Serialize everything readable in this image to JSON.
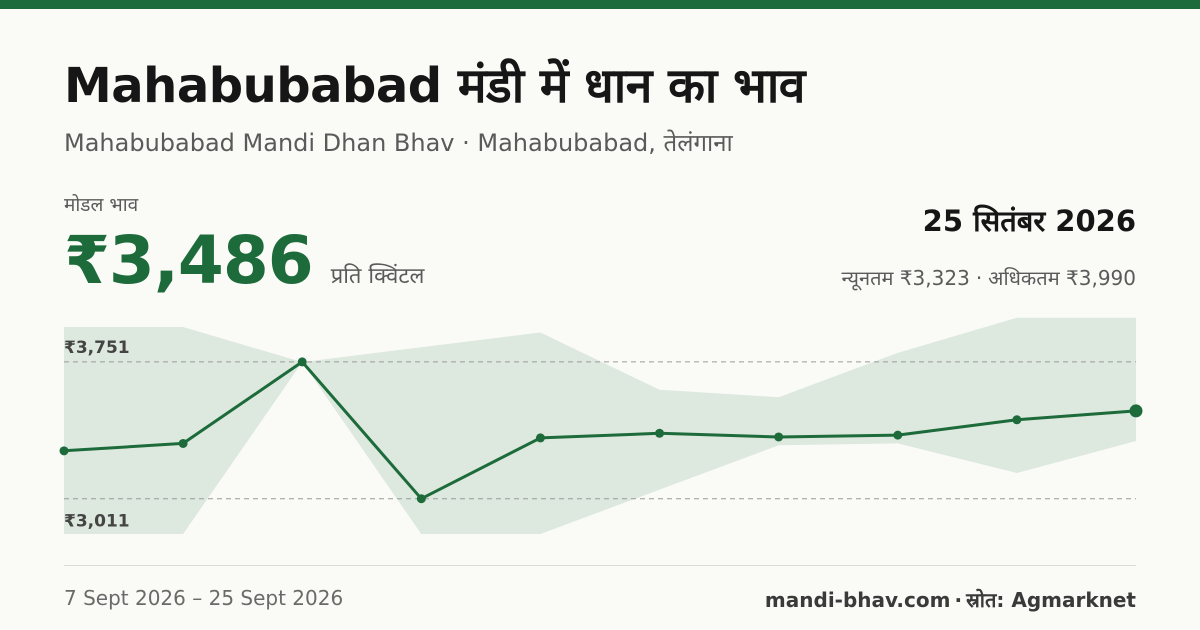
{
  "colors": {
    "accent": "#1d6b3a",
    "band": "#dde8df",
    "grid": "#9a9a9a",
    "muted_text": "#5a5a5a"
  },
  "header": {
    "title": "Mahabubabad मंडी में धान का भाव",
    "subtitle": "Mahabubabad Mandi Dhan Bhav · Mahabubabad, तेलंगाना"
  },
  "price": {
    "label": "मोडल भाव",
    "value": "₹3,486",
    "unit": "प्रति क्विंटल"
  },
  "summary": {
    "date": "25 सितंबर 2026",
    "min_label": "न्यूनतम ₹3,323",
    "separator": "·",
    "max_label": "अधिकतम ₹3,990"
  },
  "chart_data": {
    "type": "line",
    "title": "",
    "xlabel": "",
    "ylabel": "",
    "x": [
      1,
      2,
      3,
      4,
      5,
      6,
      7,
      8,
      9,
      10
    ],
    "series": [
      {
        "role": "modal",
        "values": [
          3270,
          3310,
          3751,
          3011,
          3340,
          3365,
          3345,
          3355,
          3438,
          3486
        ]
      },
      {
        "role": "band_max",
        "values": [
          3940,
          3940,
          3750,
          3830,
          3910,
          3600,
          3560,
          3800,
          3990,
          3990
        ]
      },
      {
        "role": "band_min",
        "values": [
          2820,
          2820,
          3750,
          2820,
          2820,
          3060,
          3300,
          3310,
          3150,
          3323
        ]
      }
    ],
    "reference_lines": [
      {
        "value": 3751,
        "label": "₹3,751"
      },
      {
        "value": 3011,
        "label": "₹3,011"
      }
    ],
    "ylim": [
      2820,
      3940
    ],
    "grid": false,
    "legend": "none"
  },
  "footer": {
    "date_range": "7 Sept 2026 – 25 Sept 2026",
    "site": "mandi-bhav.com",
    "separator": "·",
    "source": "स्रोत: Agmarknet"
  }
}
